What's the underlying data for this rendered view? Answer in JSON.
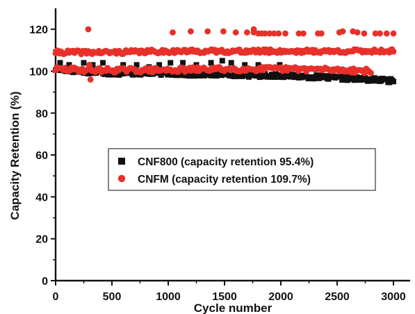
{
  "chart_data": {
    "type": "scatter",
    "xlabel": "Cycle number",
    "ylabel": "Capacity Retention (%)",
    "xlim": [
      0,
      3000
    ],
    "ylim": [
      0,
      130
    ],
    "x_ticks": [
      0,
      500,
      1000,
      1500,
      2000,
      2500,
      3000
    ],
    "y_ticks": [
      0,
      20,
      40,
      60,
      80,
      100,
      120
    ],
    "x_tick_labels": [
      "0",
      "500",
      "1000",
      "1500",
      "2000",
      "2500",
      "3000"
    ],
    "y_tick_labels": [
      "0",
      "20",
      "40",
      "60",
      "80",
      "100",
      "120"
    ],
    "grid": false,
    "legend_position": "center",
    "series": [
      {
        "name": "CNF800 (capacity retention 95.4%)",
        "marker": "square",
        "color": "#111111",
        "baseline_points": [
          [
            0,
            101
          ],
          [
            200,
            100
          ],
          [
            500,
            99
          ],
          [
            800,
            99
          ],
          [
            1000,
            99
          ],
          [
            1200,
            98.5
          ],
          [
            1500,
            98.5
          ],
          [
            1800,
            98
          ],
          [
            2000,
            98
          ],
          [
            2200,
            97.5
          ],
          [
            2400,
            97
          ],
          [
            2600,
            96.5
          ],
          [
            2800,
            96
          ],
          [
            3000,
            95.4
          ]
        ],
        "outlier_points": [
          [
            40,
            104
          ],
          [
            120,
            103
          ],
          [
            250,
            104
          ],
          [
            330,
            103
          ],
          [
            420,
            104
          ],
          [
            600,
            103
          ],
          [
            720,
            103
          ],
          [
            830,
            102
          ],
          [
            920,
            103
          ],
          [
            1020,
            104
          ],
          [
            1130,
            104
          ],
          [
            1250,
            103
          ],
          [
            1380,
            104
          ],
          [
            1480,
            105
          ],
          [
            1560,
            104
          ],
          [
            1680,
            103
          ],
          [
            1800,
            103
          ],
          [
            1880,
            102
          ],
          [
            1990,
            103
          ]
        ]
      },
      {
        "name": "CNFM (capacity retention 109.7%)",
        "marker": "circle",
        "color": "#e8302a",
        "lower_band_points": [
          [
            0,
            101
          ],
          [
            300,
            100.5
          ],
          [
            600,
            100.5
          ],
          [
            1000,
            100.5
          ],
          [
            1400,
            101
          ],
          [
            1800,
            101
          ],
          [
            2200,
            101
          ],
          [
            2600,
            100.5
          ],
          [
            2800,
            100
          ]
        ],
        "upper_band_points": [
          [
            0,
            109
          ],
          [
            500,
            109
          ],
          [
            1000,
            109.5
          ],
          [
            1500,
            109.5
          ],
          [
            2000,
            109.5
          ],
          [
            2500,
            109.5
          ],
          [
            3000,
            109.7
          ]
        ],
        "outlier_points": [
          [
            290,
            120
          ],
          [
            310,
            96
          ],
          [
            300,
            103
          ],
          [
            1040,
            118.5
          ],
          [
            1200,
            119
          ],
          [
            1350,
            119
          ],
          [
            1490,
            119
          ],
          [
            1600,
            118.5
          ],
          [
            1700,
            118.5
          ],
          [
            1760,
            118.5
          ],
          [
            1800,
            118
          ],
          [
            1830,
            118
          ],
          [
            1860,
            118
          ],
          [
            1900,
            118
          ],
          [
            1940,
            118
          ],
          [
            1980,
            118
          ],
          [
            2040,
            118
          ],
          [
            2160,
            118
          ],
          [
            2200,
            118
          ],
          [
            2330,
            118
          ],
          [
            2360,
            118
          ],
          [
            2520,
            118.5
          ],
          [
            2550,
            119
          ],
          [
            2640,
            119
          ],
          [
            2680,
            118.5
          ],
          [
            2740,
            118
          ],
          [
            2840,
            118
          ],
          [
            2880,
            118
          ],
          [
            2940,
            118
          ],
          [
            3000,
            118
          ],
          [
            1760,
            120
          ]
        ]
      }
    ]
  }
}
